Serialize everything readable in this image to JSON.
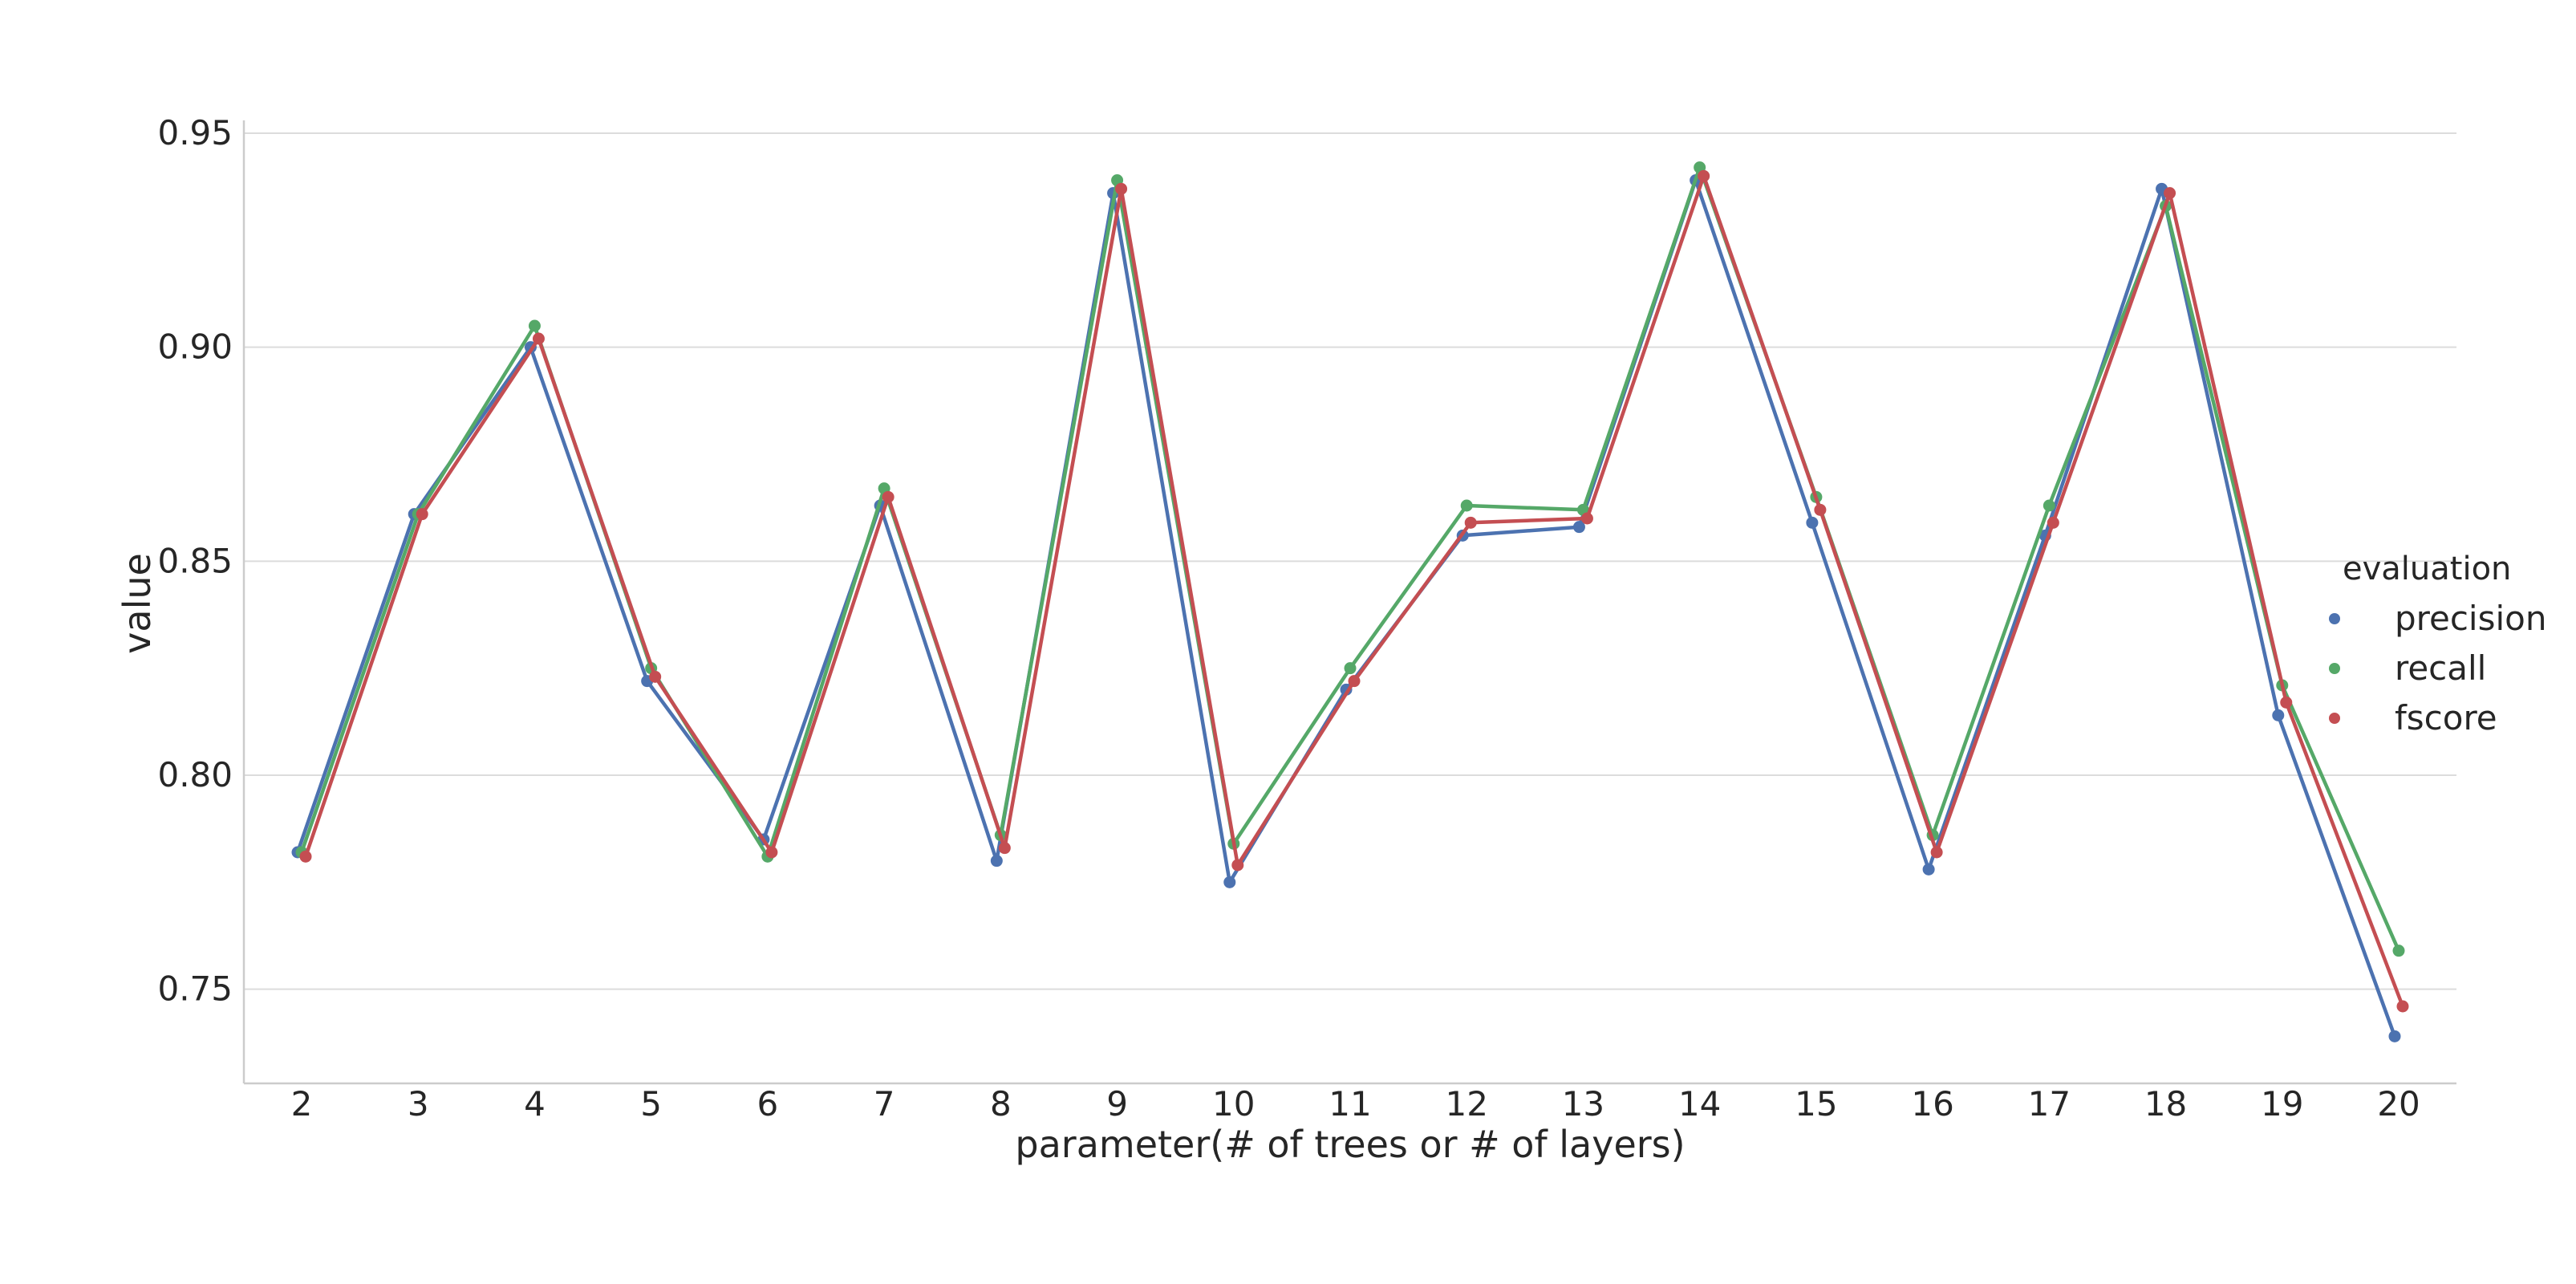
{
  "chart_data": {
    "type": "line",
    "xlabel": "parameter(# of trees or # of layers)",
    "ylabel": "value",
    "categories": [
      "2",
      "3",
      "4",
      "5",
      "6",
      "7",
      "8",
      "9",
      "10",
      "11",
      "12",
      "13",
      "14",
      "15",
      "16",
      "17",
      "18",
      "19",
      "20"
    ],
    "ylim": [
      0.728,
      0.953
    ],
    "yticks": [
      0.75,
      0.8,
      0.85,
      0.9,
      0.95
    ],
    "ytick_labels": [
      "0.75",
      "0.80",
      "0.85",
      "0.90",
      "0.95"
    ],
    "grid": "horizontal",
    "legend": {
      "title": "evaluation",
      "placement": "right"
    },
    "series": [
      {
        "name": "precision",
        "color": "#4c72b0",
        "values": [
          0.782,
          0.861,
          0.9,
          0.822,
          0.785,
          0.863,
          0.78,
          0.936,
          0.775,
          0.82,
          0.856,
          0.858,
          0.939,
          0.859,
          0.778,
          0.856,
          0.937,
          0.814,
          0.739
        ]
      },
      {
        "name": "recall",
        "color": "#55a868",
        "values": [
          0.782,
          0.861,
          0.905,
          0.825,
          0.781,
          0.867,
          0.786,
          0.939,
          0.784,
          0.825,
          0.863,
          0.862,
          0.942,
          0.865,
          0.786,
          0.863,
          0.933,
          0.821,
          0.759
        ]
      },
      {
        "name": "fscore",
        "color": "#c44e52",
        "values": [
          0.781,
          0.861,
          0.902,
          0.823,
          0.782,
          0.865,
          0.783,
          0.937,
          0.779,
          0.822,
          0.859,
          0.86,
          0.94,
          0.862,
          0.782,
          0.859,
          0.936,
          0.817,
          0.746
        ]
      }
    ]
  }
}
